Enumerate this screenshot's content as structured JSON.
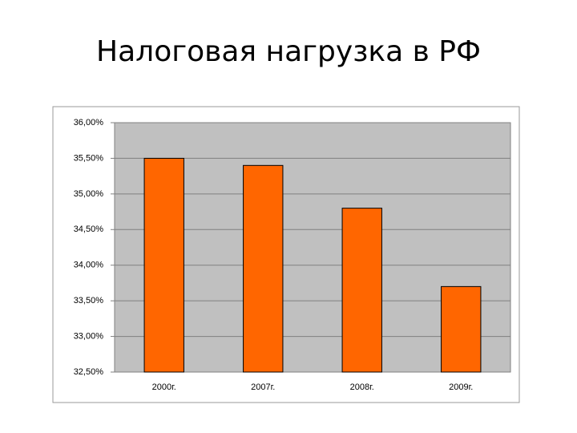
{
  "title": "Налоговая нагрузка в РФ",
  "chart_data": {
    "type": "bar",
    "categories": [
      "2000г.",
      "2007г.",
      "2008г.",
      "2009г."
    ],
    "values": [
      35.5,
      35.4,
      34.8,
      33.7
    ],
    "color": "#ff6600",
    "ylim": [
      32.5,
      36
    ],
    "yticks": [
      {
        "value": 32.5,
        "label": "32,50%"
      },
      {
        "value": 33,
        "label": "33,00%"
      },
      {
        "value": 33.5,
        "label": "33,50%"
      },
      {
        "value": 34,
        "label": "34,00%"
      },
      {
        "value": 34.5,
        "label": "34,50%"
      },
      {
        "value": 35,
        "label": "35,00%"
      },
      {
        "value": 35.5,
        "label": "35,50%"
      },
      {
        "value": 36,
        "label": "36,00%"
      }
    ],
    "grid": true
  }
}
